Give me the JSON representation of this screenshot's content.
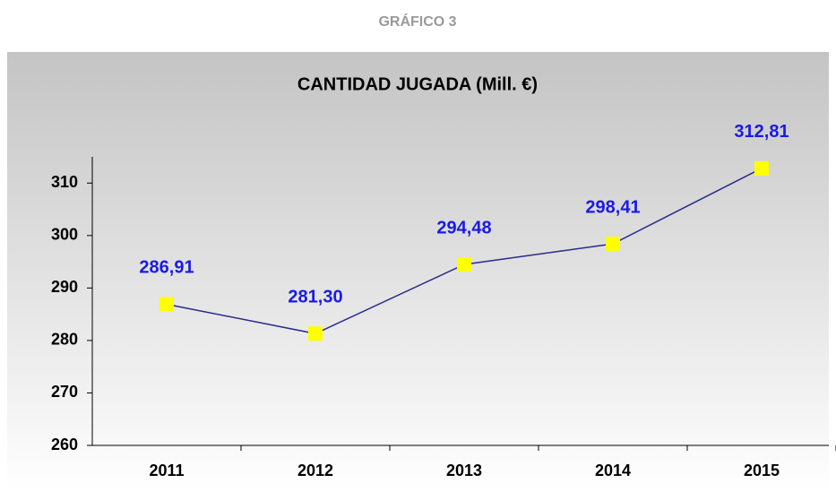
{
  "header": "GRÁFICO 3",
  "chart_data": {
    "type": "line",
    "title": "CANTIDAD JUGADA (Mill. €)",
    "categories": [
      "2011",
      "2012",
      "2013",
      "2014",
      "2015"
    ],
    "series": [
      {
        "color": "#2b2b8c",
        "marker_color": "#ffff00",
        "values": [
          286.91,
          281.3,
          294.48,
          298.41,
          312.81
        ],
        "value_labels": [
          "286,91",
          "281,30",
          "294,48",
          "298,41",
          "312,81"
        ]
      }
    ],
    "label_color": "#1a1ae6",
    "ylim": [
      260,
      315
    ],
    "yticks": [
      260,
      270,
      280,
      290,
      300,
      310
    ],
    "grid": false
  }
}
